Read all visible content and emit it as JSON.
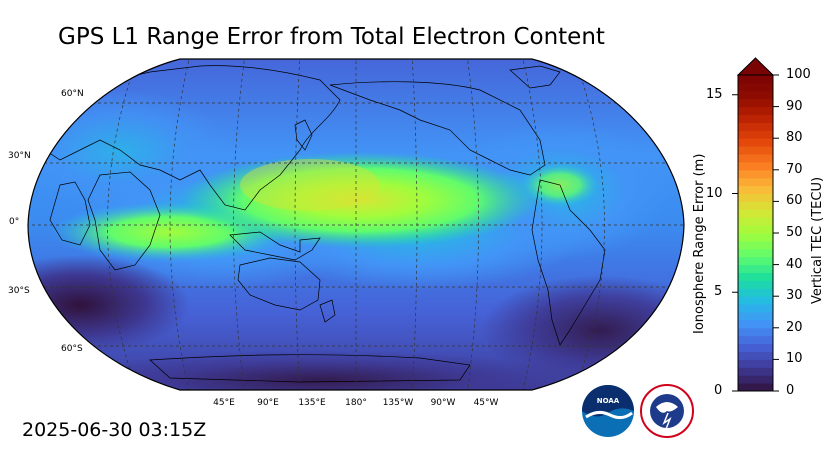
{
  "title": "GPS L1 Range Error from Total Electron Content",
  "timestamp": "2025-06-30 03:15Z",
  "map": {
    "projection": "robinson",
    "central_longitude": 180,
    "lat_labels": [
      "60°N",
      "30°N",
      "0°",
      "30°S",
      "60°S"
    ],
    "lon_labels": [
      "45°E",
      "90°E",
      "135°E",
      "180°",
      "135°W",
      "90°W",
      "45°W"
    ]
  },
  "colorbar": {
    "left_label": "Ionosphere Range Error (m)",
    "right_label": "Vertical TEC (TECU)",
    "left_ticks": [
      "0",
      "5",
      "10",
      "15"
    ],
    "right_ticks": [
      "0",
      "10",
      "20",
      "30",
      "40",
      "50",
      "60",
      "70",
      "80",
      "90",
      "100"
    ],
    "extend": "max",
    "colors": [
      "#30123b",
      "#3e3892",
      "#4662d7",
      "#4294f6",
      "#25bbe4",
      "#1bde9e",
      "#61fc6c",
      "#a2fc3c",
      "#d6e535",
      "#fbb938",
      "#fb7e21",
      "#e54a0b",
      "#c02503",
      "#900c01",
      "#7a0403"
    ]
  },
  "logos": [
    "NOAA",
    "NATIONAL WEATHER SERVICE"
  ]
}
